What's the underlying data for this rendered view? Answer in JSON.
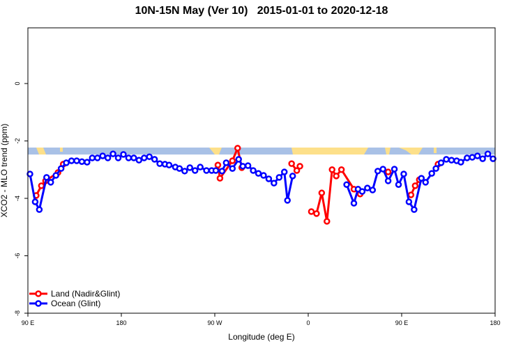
{
  "chart_data": {
    "type": "line",
    "title": "10N-15N May (Ver 10)   2015-01-01 to 2020-12-18",
    "xlabel": "Longitude (deg E)",
    "ylabel": "XCO2 - MLO trend (ppm)",
    "xlim": [
      90,
      540
    ],
    "ylim": [
      -8,
      1.94
    ],
    "xticks": [
      {
        "value": 90,
        "label": "90 E"
      },
      180,
      {
        "value": 270,
        "label": "90 W"
      },
      {
        "value": 360,
        "label": "0"
      },
      {
        "value": 450,
        "label": "90 E"
      },
      {
        "value": 540,
        "label": "180"
      }
    ],
    "yticks": [
      0,
      -2,
      -4,
      -6,
      -8
    ],
    "legend": "bottom-left",
    "series": [
      {
        "name": "Land (Nadir&Glint)",
        "color": "#ff0000",
        "x": [
          98,
          103,
          107,
          119,
          124,
          null,
          273,
          275,
          287,
          292,
          296,
          null,
          344,
          349,
          352,
          null,
          363,
          368,
          373,
          378,
          383,
          387,
          392,
          404,
          410,
          null,
          437,
          null,
          459,
          463,
          467,
          null,
          485
        ],
        "values": [
          -3.9,
          -3.56,
          -3.39,
          -3.1,
          -2.81,
          null,
          -2.84,
          -3.3,
          -2.69,
          -2.25,
          -2.93,
          null,
          -2.79,
          -3.03,
          -2.88,
          null,
          -4.46,
          -4.53,
          -3.81,
          -4.8,
          -3.0,
          -3.22,
          -3.0,
          -3.68,
          -3.85,
          null,
          -3.08,
          null,
          -3.88,
          -3.56,
          -3.35,
          null,
          -2.81
        ]
      },
      {
        "name": "Ocean (Glint)",
        "color": "#0000ff",
        "x": [
          92,
          97,
          101,
          108,
          112,
          117,
          122,
          127,
          132,
          137,
          142,
          147,
          152,
          157,
          162,
          167,
          172,
          177,
          182,
          187,
          192,
          197,
          202,
          207,
          212,
          217,
          222,
          226,
          232,
          236,
          241,
          246,
          251,
          256,
          262,
          267,
          271,
          277,
          281,
          287,
          293,
          297,
          302,
          307,
          312,
          317,
          322,
          327,
          332,
          337,
          340,
          345,
          null,
          397,
          404,
          408,
          412,
          417,
          422,
          427,
          432,
          437,
          443,
          447,
          452,
          457,
          462,
          469,
          473,
          479,
          483,
          488,
          493,
          498,
          503,
          507,
          513,
          518,
          523,
          528,
          533,
          538
        ],
        "values": [
          -3.15,
          -4.12,
          -4.39,
          -3.27,
          -3.44,
          -3.2,
          -2.96,
          -2.76,
          -2.69,
          -2.69,
          -2.72,
          -2.74,
          -2.59,
          -2.59,
          -2.52,
          -2.59,
          -2.45,
          -2.59,
          -2.47,
          -2.59,
          -2.59,
          -2.67,
          -2.59,
          -2.55,
          -2.64,
          -2.79,
          -2.81,
          -2.84,
          -2.91,
          -2.96,
          -3.05,
          -2.93,
          -3.03,
          -2.91,
          -3.03,
          -3.03,
          -3.03,
          -3.05,
          -2.76,
          -2.96,
          -2.64,
          -2.88,
          -2.86,
          -3.03,
          -3.13,
          -3.2,
          -3.32,
          -3.47,
          -3.27,
          -3.08,
          -4.07,
          -3.22,
          null,
          -3.52,
          -4.17,
          -3.68,
          -3.76,
          -3.64,
          -3.71,
          -3.05,
          -2.98,
          -3.39,
          -2.98,
          -3.52,
          -3.15,
          -4.12,
          -4.39,
          -3.3,
          -3.44,
          -3.13,
          -2.96,
          -2.76,
          -2.64,
          -2.67,
          -2.69,
          -2.74,
          -2.59,
          -2.57,
          -2.52,
          -2.62,
          -2.45,
          -2.62
        ]
      }
    ]
  }
}
